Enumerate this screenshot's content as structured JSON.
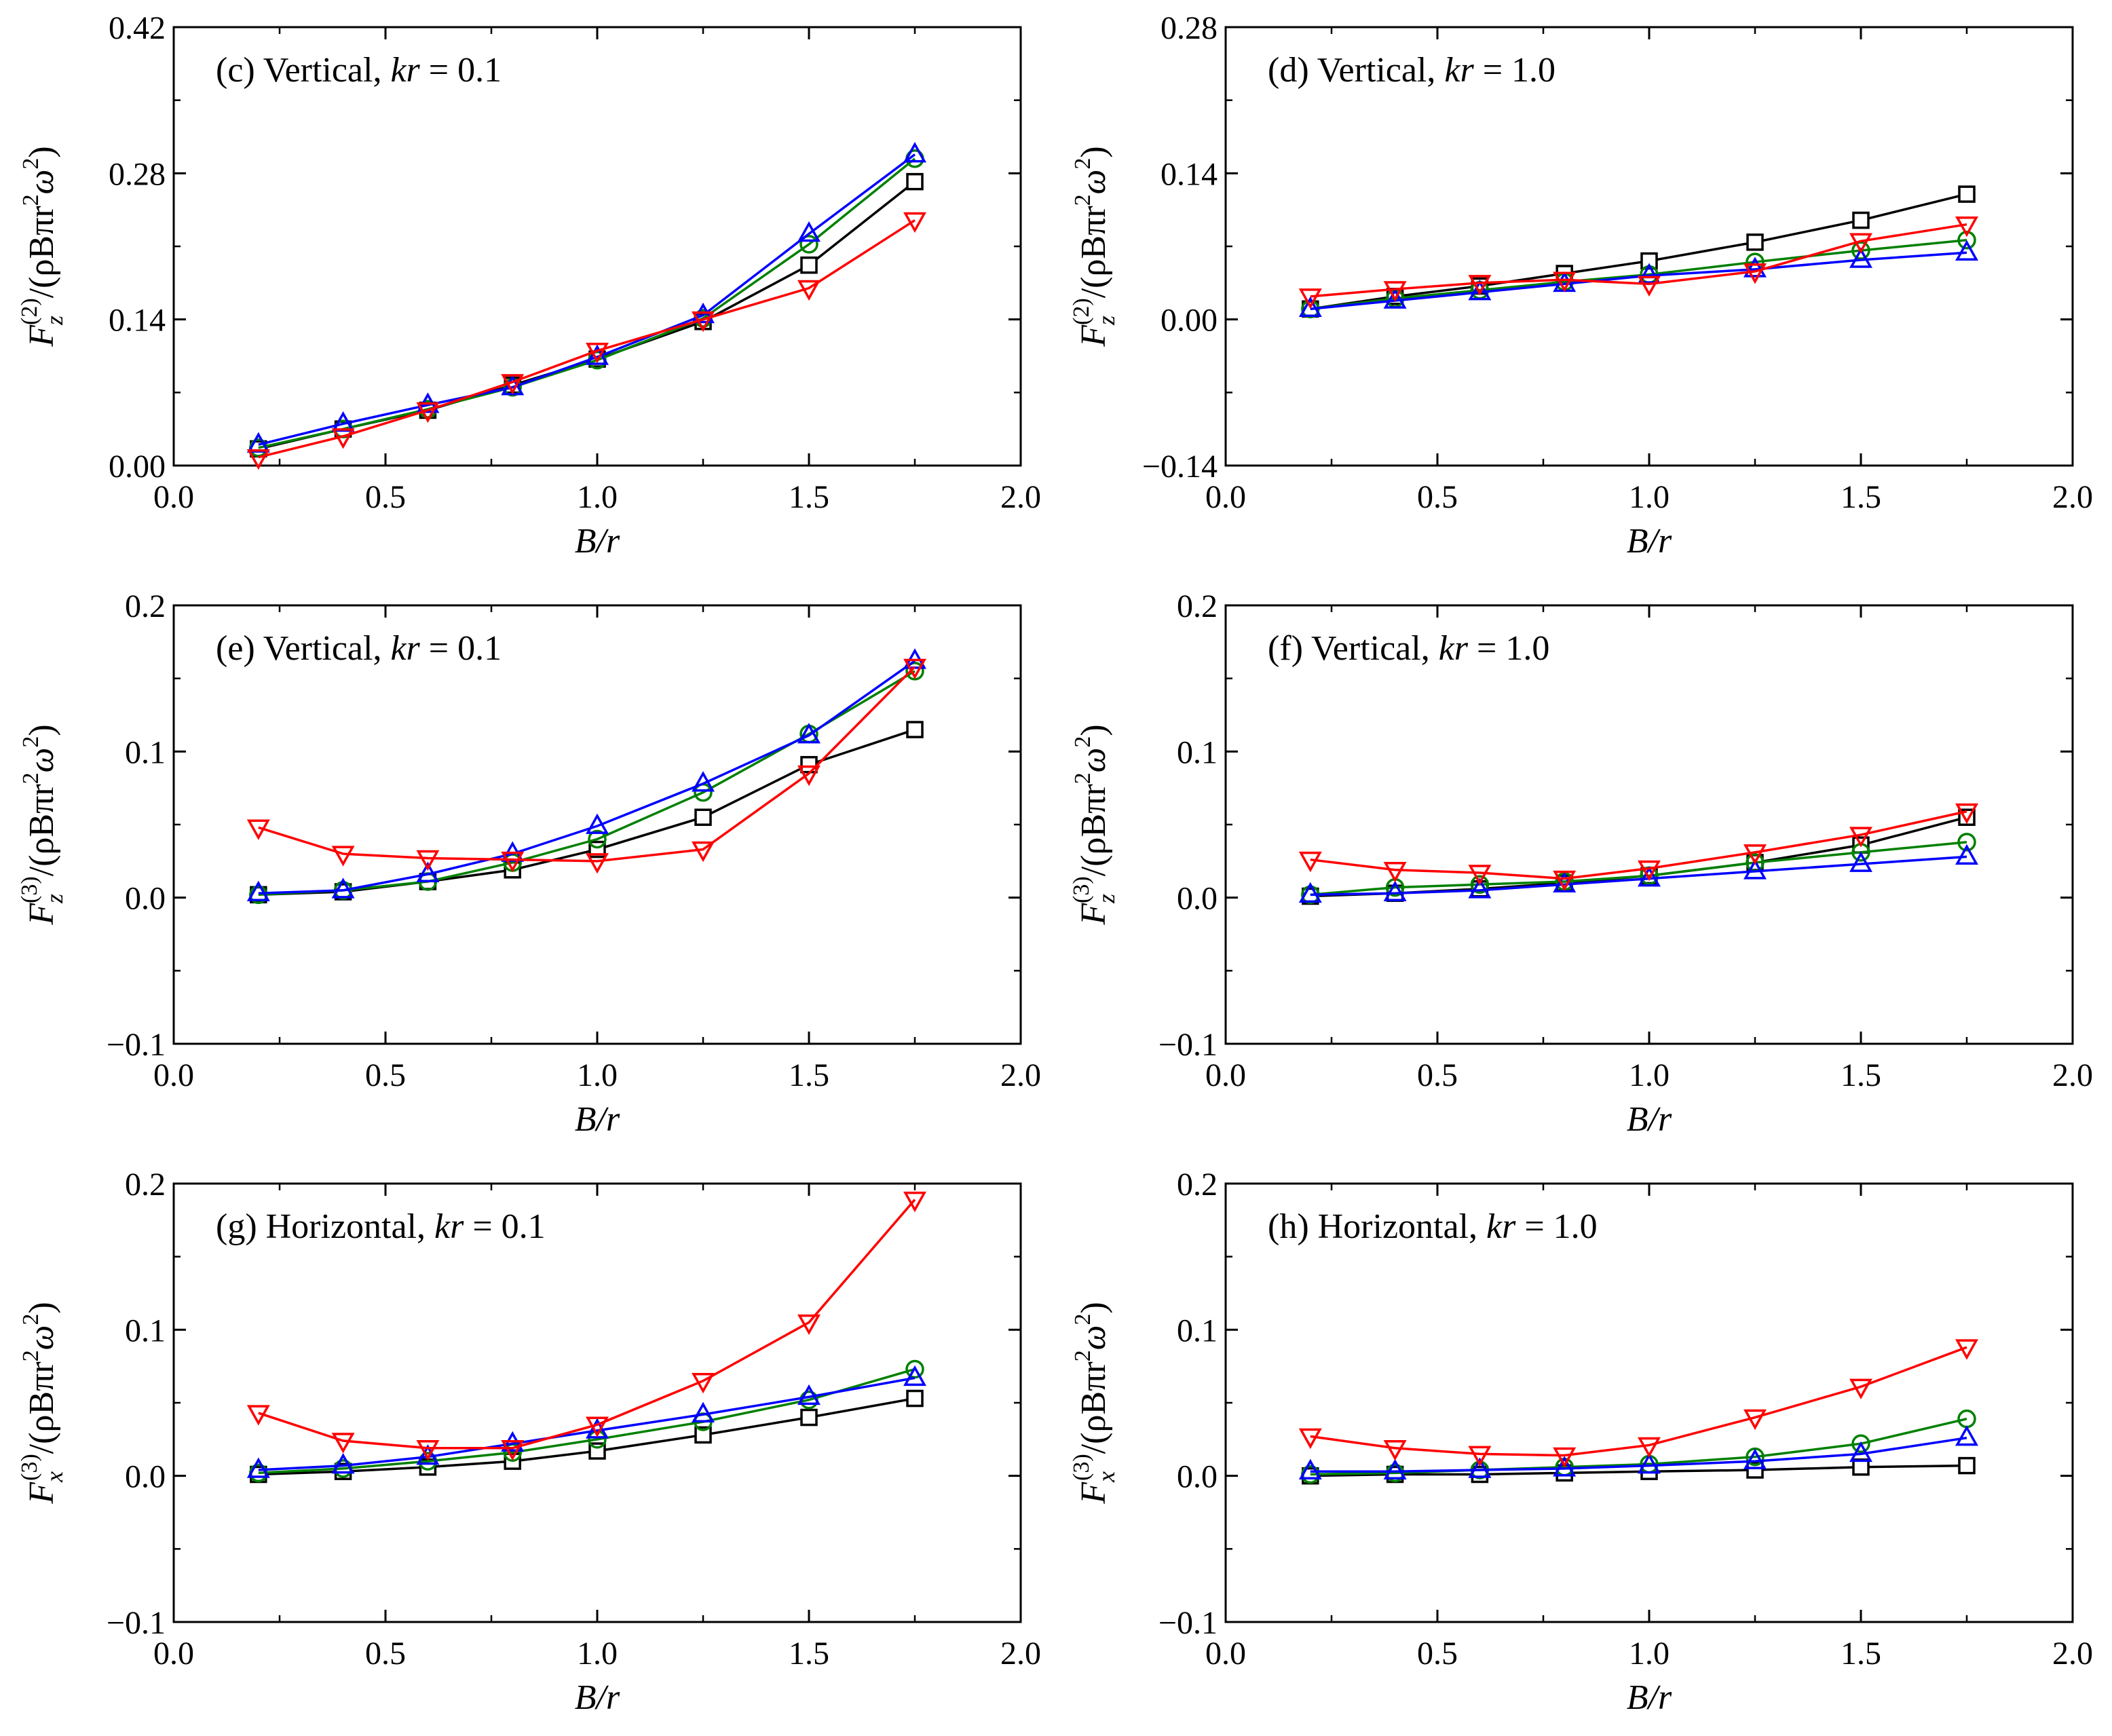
{
  "chart_data": [
    {
      "id": "c",
      "type": "line",
      "title": "(c) Vertical, kr = 0.1",
      "title_parts": {
        "prefix": "(c) Vertical, ",
        "var": "kr",
        "suffix": " = 0.1"
      },
      "xlabel": "B/r",
      "ylabel": "F_z^(2)/(ρBπr²ω²)",
      "ylabel_parts": {
        "F": "F",
        "sub": "z",
        "sup": "(2)",
        "mid": "/(ρBπr",
        "sq": "2",
        "omega": "ω",
        "sq2": "2",
        "end": ")"
      },
      "xlim": [
        0,
        2
      ],
      "ylim": [
        0,
        0.42
      ],
      "xticks": [
        0,
        0.5,
        1,
        1.5,
        2
      ],
      "xtick_labels": [
        "0.0",
        "0.5",
        "1.0",
        "1.5",
        "2.0"
      ],
      "yticks": [
        0,
        0.14,
        0.28,
        0.42
      ],
      "ytick_labels": [
        "0.00",
        "0.14",
        "0.28",
        "0.42"
      ],
      "x": [
        0.2,
        0.4,
        0.6,
        0.8,
        1.0,
        1.25,
        1.5,
        1.75
      ],
      "series": [
        {
          "name": "black-square",
          "color": "#000000",
          "marker": "square",
          "values": [
            0.016,
            0.035,
            0.053,
            0.077,
            0.102,
            0.138,
            0.192,
            0.272
          ]
        },
        {
          "name": "green-circle",
          "color": "#008000",
          "marker": "circle",
          "values": [
            0.017,
            0.035,
            0.054,
            0.075,
            0.101,
            0.141,
            0.212,
            0.294
          ]
        },
        {
          "name": "blue-triangle-up",
          "color": "#0000ff",
          "marker": "triangle-up",
          "values": [
            0.02,
            0.04,
            0.058,
            0.075,
            0.104,
            0.144,
            0.222,
            0.298
          ]
        },
        {
          "name": "red-triangle-down",
          "color": "#ff0000",
          "marker": "triangle-down",
          "values": [
            0.008,
            0.028,
            0.053,
            0.08,
            0.11,
            0.14,
            0.17,
            0.235
          ]
        }
      ]
    },
    {
      "id": "d",
      "type": "line",
      "title": "(d) Vertical, kr = 1.0",
      "title_parts": {
        "prefix": "(d) Vertical, ",
        "var": "kr",
        "suffix": " = 1.0"
      },
      "xlabel": "B/r",
      "ylabel": "F_z^(2)/(ρBπr²ω²)",
      "ylabel_parts": {
        "F": "F",
        "sub": "z",
        "sup": "(2)",
        "mid": "/(ρBπr",
        "sq": "2",
        "omega": "ω",
        "sq2": "2",
        "end": ")"
      },
      "xlim": [
        0,
        2
      ],
      "ylim": [
        -0.14,
        0.28
      ],
      "xticks": [
        0,
        0.5,
        1,
        1.5,
        2
      ],
      "xtick_labels": [
        "0.0",
        "0.5",
        "1.0",
        "1.5",
        "2.0"
      ],
      "yticks": [
        -0.14,
        0,
        0.14,
        0.28
      ],
      "ytick_labels": [
        "−0.14",
        "0.00",
        "0.14",
        "0.28"
      ],
      "x": [
        0.2,
        0.4,
        0.6,
        0.8,
        1.0,
        1.25,
        1.5,
        1.75
      ],
      "series": [
        {
          "name": "black-square",
          "color": "#000000",
          "marker": "square",
          "values": [
            0.01,
            0.022,
            0.032,
            0.044,
            0.056,
            0.074,
            0.095,
            0.12
          ]
        },
        {
          "name": "green-circle",
          "color": "#008000",
          "marker": "circle",
          "values": [
            0.01,
            0.02,
            0.028,
            0.036,
            0.043,
            0.055,
            0.066,
            0.076
          ]
        },
        {
          "name": "blue-triangle-up",
          "color": "#0000ff",
          "marker": "triangle-up",
          "values": [
            0.01,
            0.018,
            0.026,
            0.034,
            0.042,
            0.048,
            0.057,
            0.064
          ]
        },
        {
          "name": "red-triangle-down",
          "color": "#ff0000",
          "marker": "triangle-down",
          "values": [
            0.022,
            0.029,
            0.035,
            0.038,
            0.034,
            0.046,
            0.075,
            0.091
          ]
        }
      ]
    },
    {
      "id": "e",
      "type": "line",
      "title": "(e) Vertical, kr = 0.1",
      "title_parts": {
        "prefix": "(e) Vertical, ",
        "var": "kr",
        "suffix": " = 0.1"
      },
      "xlabel": "B/r",
      "ylabel": "F_z^(3)/(ρBπr²ω²)",
      "ylabel_parts": {
        "F": "F",
        "sub": "z",
        "sup": "(3)",
        "mid": "/(ρBπr",
        "sq": "2",
        "omega": "ω",
        "sq2": "2",
        "end": ")"
      },
      "xlim": [
        0,
        2
      ],
      "ylim": [
        -0.1,
        0.2
      ],
      "xticks": [
        0,
        0.5,
        1,
        1.5,
        2
      ],
      "xtick_labels": [
        "0.0",
        "0.5",
        "1.0",
        "1.5",
        "2.0"
      ],
      "yticks": [
        -0.1,
        0,
        0.1,
        0.2
      ],
      "ytick_labels": [
        "−0.1",
        "0.0",
        "0.1",
        "0.2"
      ],
      "x": [
        0.2,
        0.4,
        0.6,
        0.8,
        1.0,
        1.25,
        1.5,
        1.75
      ],
      "series": [
        {
          "name": "black-square",
          "color": "#000000",
          "marker": "square",
          "values": [
            0.002,
            0.004,
            0.011,
            0.019,
            0.033,
            0.055,
            0.091,
            0.115
          ]
        },
        {
          "name": "green-circle",
          "color": "#008000",
          "marker": "circle",
          "values": [
            0.002,
            0.005,
            0.011,
            0.024,
            0.04,
            0.072,
            0.112,
            0.155
          ]
        },
        {
          "name": "blue-triangle-up",
          "color": "#0000ff",
          "marker": "triangle-up",
          "values": [
            0.003,
            0.005,
            0.016,
            0.03,
            0.049,
            0.078,
            0.111,
            0.162
          ]
        },
        {
          "name": "red-triangle-down",
          "color": "#ff0000",
          "marker": "triangle-down",
          "values": [
            0.048,
            0.03,
            0.027,
            0.026,
            0.025,
            0.033,
            0.085,
            0.158
          ]
        }
      ]
    },
    {
      "id": "f",
      "type": "line",
      "title": "(f) Vertical, kr = 1.0",
      "title_parts": {
        "prefix": "(f) Vertical, ",
        "var": "kr",
        "suffix": " = 1.0"
      },
      "xlabel": "B/r",
      "ylabel": "F_z^(3)/(ρBπr²ω²)",
      "ylabel_parts": {
        "F": "F",
        "sub": "z",
        "sup": "(3)",
        "mid": "/(ρBπr",
        "sq": "2",
        "omega": "ω",
        "sq2": "2",
        "end": ")"
      },
      "xlim": [
        0,
        2
      ],
      "ylim": [
        -0.1,
        0.2
      ],
      "xticks": [
        0,
        0.5,
        1,
        1.5,
        2
      ],
      "xtick_labels": [
        "0.0",
        "0.5",
        "1.0",
        "1.5",
        "2.0"
      ],
      "yticks": [
        -0.1,
        0,
        0.1,
        0.2
      ],
      "ytick_labels": [
        "−0.1",
        "0.0",
        "0.1",
        "0.2"
      ],
      "x": [
        0.2,
        0.4,
        0.6,
        0.8,
        1.0,
        1.25,
        1.5,
        1.75
      ],
      "series": [
        {
          "name": "black-square",
          "color": "#000000",
          "marker": "square",
          "values": [
            0.001,
            0.003,
            0.006,
            0.01,
            0.015,
            0.024,
            0.036,
            0.055
          ]
        },
        {
          "name": "green-circle",
          "color": "#008000",
          "marker": "circle",
          "values": [
            0.002,
            0.007,
            0.009,
            0.011,
            0.015,
            0.024,
            0.031,
            0.038
          ]
        },
        {
          "name": "blue-triangle-up",
          "color": "#0000ff",
          "marker": "triangle-up",
          "values": [
            0.002,
            0.003,
            0.005,
            0.009,
            0.013,
            0.018,
            0.023,
            0.028
          ]
        },
        {
          "name": "red-triangle-down",
          "color": "#ff0000",
          "marker": "triangle-down",
          "values": [
            0.026,
            0.019,
            0.017,
            0.013,
            0.02,
            0.031,
            0.043,
            0.059
          ]
        }
      ]
    },
    {
      "id": "g",
      "type": "line",
      "title": "(g) Horizontal, kr = 0.1",
      "title_parts": {
        "prefix": "(g) Horizontal, ",
        "var": "kr",
        "suffix": " = 0.1"
      },
      "xlabel": "B/r",
      "ylabel": "F_x^(3)/(ρBπr²ω²)",
      "ylabel_parts": {
        "F": "F",
        "sub": "x",
        "sup": "(3)",
        "mid": "/(ρBπr",
        "sq": "2",
        "omega": "ω",
        "sq2": "2",
        "end": ")"
      },
      "xlim": [
        0,
        2
      ],
      "ylim": [
        -0.1,
        0.2
      ],
      "xticks": [
        0,
        0.5,
        1,
        1.5,
        2
      ],
      "xtick_labels": [
        "0.0",
        "0.5",
        "1.0",
        "1.5",
        "2.0"
      ],
      "yticks": [
        -0.1,
        0,
        0.1,
        0.2
      ],
      "ytick_labels": [
        "−0.1",
        "0.0",
        "0.1",
        "0.2"
      ],
      "x": [
        0.2,
        0.4,
        0.6,
        0.8,
        1.0,
        1.25,
        1.5,
        1.75
      ],
      "series": [
        {
          "name": "black-square",
          "color": "#000000",
          "marker": "square",
          "values": [
            0.001,
            0.003,
            0.006,
            0.01,
            0.017,
            0.028,
            0.04,
            0.053
          ]
        },
        {
          "name": "green-circle",
          "color": "#008000",
          "marker": "circle",
          "values": [
            0.002,
            0.005,
            0.01,
            0.016,
            0.025,
            0.037,
            0.052,
            0.073
          ]
        },
        {
          "name": "blue-triangle-up",
          "color": "#0000ff",
          "marker": "triangle-up",
          "values": [
            0.004,
            0.007,
            0.013,
            0.022,
            0.031,
            0.042,
            0.054,
            0.067
          ]
        },
        {
          "name": "red-triangle-down",
          "color": "#ff0000",
          "marker": "triangle-down",
          "values": [
            0.043,
            0.024,
            0.019,
            0.019,
            0.035,
            0.065,
            0.105,
            0.189
          ]
        }
      ]
    },
    {
      "id": "h",
      "type": "line",
      "title": "(h) Horizontal, kr = 1.0",
      "title_parts": {
        "prefix": "(h) Horizontal, ",
        "var": "kr",
        "suffix": " = 1.0"
      },
      "xlabel": "B/r",
      "ylabel": "F_x^(3)/(ρBπr²ω²)",
      "ylabel_parts": {
        "F": "F",
        "sub": "x",
        "sup": "(3)",
        "mid": "/(ρBπr",
        "sq": "2",
        "omega": "ω",
        "sq2": "2",
        "end": ")"
      },
      "xlim": [
        0,
        2
      ],
      "ylim": [
        -0.1,
        0.2
      ],
      "xticks": [
        0,
        0.5,
        1,
        1.5,
        2
      ],
      "xtick_labels": [
        "0.0",
        "0.5",
        "1.0",
        "1.5",
        "2.0"
      ],
      "yticks": [
        -0.1,
        0,
        0.1,
        0.2
      ],
      "ytick_labels": [
        "−0.1",
        "0.0",
        "0.1",
        "0.2"
      ],
      "x": [
        0.2,
        0.4,
        0.6,
        0.8,
        1.0,
        1.25,
        1.5,
        1.75
      ],
      "series": [
        {
          "name": "black-square",
          "color": "#000000",
          "marker": "square",
          "values": [
            0.0,
            0.001,
            0.001,
            0.002,
            0.003,
            0.004,
            0.006,
            0.007
          ]
        },
        {
          "name": "green-circle",
          "color": "#008000",
          "marker": "circle",
          "values": [
            0.001,
            0.002,
            0.004,
            0.006,
            0.008,
            0.013,
            0.022,
            0.039
          ]
        },
        {
          "name": "blue-triangle-up",
          "color": "#0000ff",
          "marker": "triangle-up",
          "values": [
            0.003,
            0.003,
            0.004,
            0.005,
            0.007,
            0.01,
            0.015,
            0.026
          ]
        },
        {
          "name": "red-triangle-down",
          "color": "#ff0000",
          "marker": "triangle-down",
          "values": [
            0.027,
            0.019,
            0.015,
            0.014,
            0.021,
            0.04,
            0.061,
            0.088
          ]
        }
      ]
    }
  ]
}
